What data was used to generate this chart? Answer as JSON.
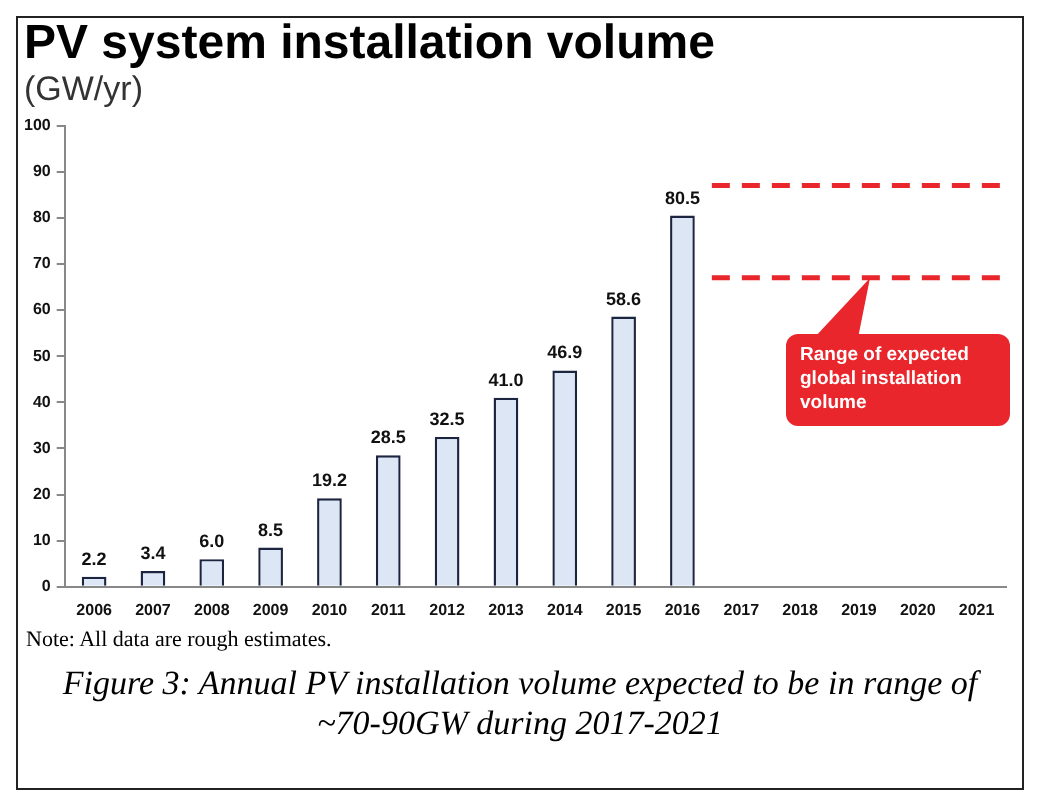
{
  "chart_data": {
    "type": "bar",
    "title": "PV system installation volume",
    "subtitle": "(GW/yr)",
    "categories": [
      "2006",
      "2007",
      "2008",
      "2009",
      "2010",
      "2011",
      "2012",
      "2013",
      "2014",
      "2015",
      "2016",
      "2017",
      "2018",
      "2019",
      "2020",
      "2021"
    ],
    "values": [
      2.2,
      3.4,
      6.0,
      8.5,
      19.2,
      28.5,
      32.5,
      41.0,
      46.9,
      58.6,
      80.5,
      null,
      null,
      null,
      null,
      null
    ],
    "color": "#dce6f5",
    "value_labels": [
      "2.2",
      "3.4",
      "6.0",
      "8.5",
      "19.2",
      "28.5",
      "32.5",
      "41.0",
      "46.9",
      "58.6",
      "80.5",
      null,
      null,
      null,
      null,
      null
    ],
    "grid": false,
    "legend": false,
    "ylim": [
      0,
      100
    ],
    "yticks": [
      0,
      10,
      20,
      30,
      40,
      50,
      60,
      70,
      80,
      90,
      100
    ],
    "ref_lines": [
      {
        "axis": "y",
        "value": 87,
        "color": "#e8262b",
        "line_style": "dashed"
      },
      {
        "axis": "y",
        "value": 67,
        "color": "#e8262b",
        "line_style": "dashed"
      }
    ],
    "annotations": [
      "Range of expected global installation volume",
      "Note: All data are rough estimates.",
      "Figure 3: Annual PV installation volume expected to be in range of ~70-90GW during 2017-2021"
    ]
  }
}
